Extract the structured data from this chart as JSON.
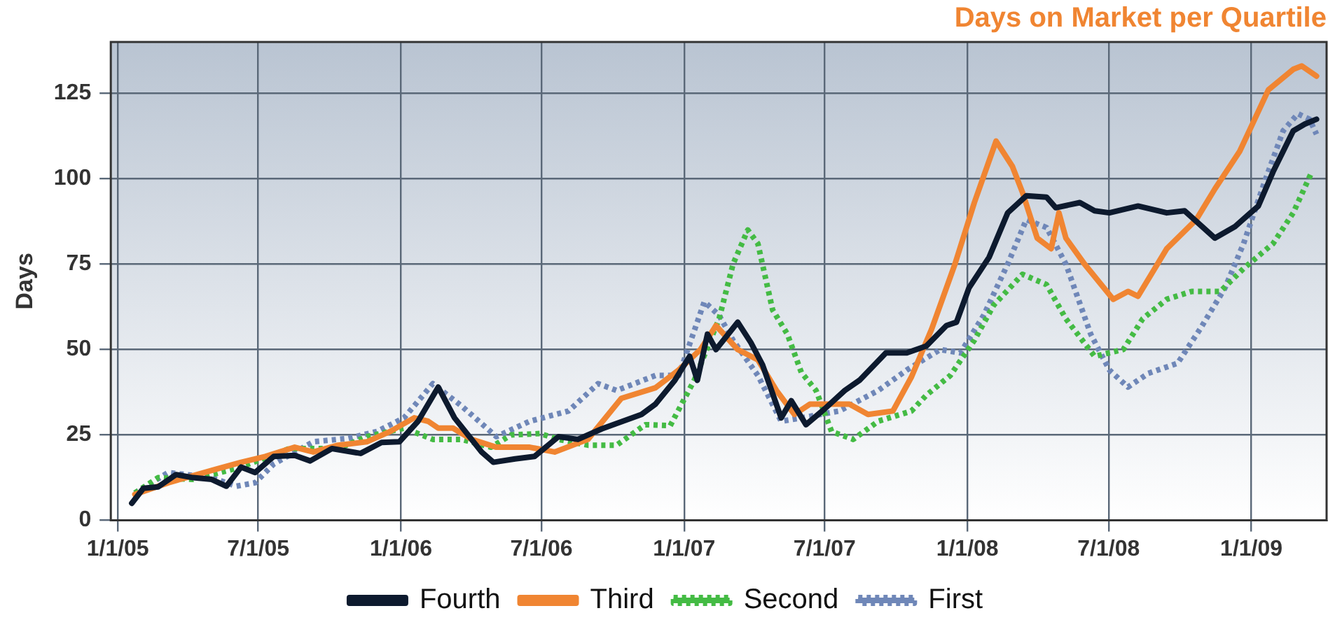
{
  "chart_data": {
    "type": "line",
    "title": "Days on Market per Quartile",
    "ylabel": "Days",
    "xlim": [
      "2004-12-23",
      "2009-04-08"
    ],
    "ylim": [
      0,
      140
    ],
    "xticks": [
      {
        "value": "2005-01-01",
        "label": "1/1/05"
      },
      {
        "value": "2005-07-01",
        "label": "7/1/05"
      },
      {
        "value": "2006-01-01",
        "label": "1/1/06"
      },
      {
        "value": "2006-07-01",
        "label": "7/1/06"
      },
      {
        "value": "2007-01-01",
        "label": "1/1/07"
      },
      {
        "value": "2007-07-01",
        "label": "7/1/07"
      },
      {
        "value": "2008-01-01",
        "label": "1/1/08"
      },
      {
        "value": "2008-07-01",
        "label": "7/1/08"
      },
      {
        "value": "2009-01-01",
        "label": "1/1/09"
      }
    ],
    "yticks": [
      0,
      25,
      50,
      75,
      100,
      125
    ],
    "grid": true,
    "legend": "bottom",
    "marker": "none",
    "series": [
      {
        "name": "Fourth",
        "color": "#0d1a2e",
        "line_style": "solid",
        "x": [
          "2005-01-19",
          "2005-02-03",
          "2005-02-22",
          "2005-03-17",
          "2005-04-08",
          "2005-05-02",
          "2005-05-21",
          "2005-06-09",
          "2005-06-27",
          "2005-07-21",
          "2005-08-17",
          "2005-09-06",
          "2005-10-04",
          "2005-11-10",
          "2005-12-07",
          "2005-12-30",
          "2006-01-23",
          "2006-02-18",
          "2006-03-11",
          "2006-04-15",
          "2006-04-30",
          "2006-05-28",
          "2006-06-22",
          "2006-07-23",
          "2006-08-17",
          "2006-09-17",
          "2006-11-07",
          "2006-11-25",
          "2006-12-20",
          "2007-01-08",
          "2007-01-18",
          "2007-01-31",
          "2007-02-11",
          "2007-03-11",
          "2007-03-28",
          "2007-04-12",
          "2007-05-06",
          "2007-05-19",
          "2007-06-07",
          "2007-07-01",
          "2007-07-27",
          "2007-08-15",
          "2007-09-18",
          "2007-10-15",
          "2007-11-09",
          "2007-12-05",
          "2007-12-18",
          "2008-01-03",
          "2008-01-29",
          "2008-02-22",
          "2008-03-17",
          "2008-04-12",
          "2008-04-24",
          "2008-05-25",
          "2008-06-13",
          "2008-07-02",
          "2008-08-08",
          "2008-09-14",
          "2008-10-07",
          "2008-11-15",
          "2008-12-11",
          "2009-01-10",
          "2009-01-29",
          "2009-02-24",
          "2009-03-11",
          "2009-03-26"
        ],
        "values": [
          5,
          9.4,
          9.8,
          13.4,
          12.5,
          12,
          10,
          15.6,
          14,
          18.7,
          19,
          17.4,
          21,
          19.6,
          22.8,
          23,
          29,
          39,
          30,
          20,
          17,
          18,
          18.7,
          24.5,
          23.7,
          26.8,
          31,
          34,
          41,
          48,
          41,
          54.5,
          50,
          58,
          52,
          45.5,
          30,
          35,
          28,
          32.6,
          38,
          41,
          49,
          49,
          51,
          57,
          58,
          68,
          77,
          90,
          95,
          94.6,
          91.5,
          93,
          90.6,
          90,
          92,
          90,
          90.6,
          82.6,
          86,
          92,
          102,
          114,
          116,
          117.4
        ]
      },
      {
        "name": "Third",
        "color": "#f08532",
        "line_style": "solid",
        "x": [
          "2005-01-23",
          "2005-03-07",
          "2005-05-08",
          "2005-06-09",
          "2005-07-10",
          "2005-08-17",
          "2005-09-10",
          "2005-10-12",
          "2005-11-18",
          "2005-12-18",
          "2006-01-18",
          "2006-02-05",
          "2006-02-18",
          "2006-03-09",
          "2006-04-02",
          "2006-05-04",
          "2006-06-16",
          "2006-07-18",
          "2006-08-30",
          "2006-10-12",
          "2006-11-25",
          "2006-12-25",
          "2007-01-22",
          "2007-02-11",
          "2007-03-11",
          "2007-04-06",
          "2007-04-30",
          "2007-05-23",
          "2007-06-12",
          "2007-08-02",
          "2007-08-26",
          "2007-09-27",
          "2007-10-21",
          "2007-11-16",
          "2007-12-16",
          "2008-01-10",
          "2008-02-07",
          "2008-02-28",
          "2008-03-12",
          "2008-03-31",
          "2008-04-18",
          "2008-04-28",
          "2008-05-07",
          "2008-05-31",
          "2008-07-07",
          "2008-07-26",
          "2008-08-08",
          "2008-09-14",
          "2008-10-22",
          "2008-11-15",
          "2008-12-17",
          "2009-01-23",
          "2009-02-24",
          "2009-03-07",
          "2009-03-26"
        ],
        "values": [
          7.6,
          11,
          15,
          17,
          18.7,
          21.4,
          20,
          22,
          23,
          26,
          30,
          29,
          27,
          27,
          23.7,
          21.4,
          21.4,
          20,
          23.7,
          35.7,
          38.8,
          44,
          50,
          57,
          50,
          47,
          38,
          31,
          34,
          34,
          31,
          32,
          42,
          56,
          75,
          93,
          111,
          103.6,
          96,
          82.6,
          79.5,
          90,
          82.6,
          75,
          64.7,
          67,
          65.6,
          79.5,
          88,
          97,
          108,
          126,
          132,
          133,
          130
        ]
      },
      {
        "name": "Second",
        "color": "#44bb44",
        "line_style": "dotted",
        "x": [
          "2005-01-23",
          "2005-02-22",
          "2005-04-08",
          "2005-06-09",
          "2005-08-10",
          "2005-10-12",
          "2005-11-18",
          "2006-01-05",
          "2006-02-11",
          "2006-03-20",
          "2006-04-27",
          "2006-05-23",
          "2006-06-29",
          "2006-07-23",
          "2006-08-30",
          "2006-10-06",
          "2006-11-12",
          "2006-12-14",
          "2007-01-14",
          "2007-02-15",
          "2007-03-05",
          "2007-03-24",
          "2007-04-06",
          "2007-04-25",
          "2007-05-14",
          "2007-06-01",
          "2007-06-20",
          "2007-07-10",
          "2007-08-07",
          "2007-09-08",
          "2007-10-21",
          "2007-11-09",
          "2007-12-10",
          "2008-01-10",
          "2008-02-04",
          "2008-03-12",
          "2008-04-12",
          "2008-05-07",
          "2008-06-13",
          "2008-07-20",
          "2008-08-14",
          "2008-09-14",
          "2008-10-16",
          "2008-11-22",
          "2008-12-22",
          "2009-01-29",
          "2009-02-24",
          "2009-03-20"
        ],
        "values": [
          8,
          12.5,
          12,
          15.6,
          21,
          21,
          24.5,
          27,
          23.7,
          23.7,
          21.4,
          25,
          25.4,
          23.7,
          22,
          22,
          28,
          27.7,
          41,
          59,
          75,
          85,
          81,
          61.6,
          54.5,
          43.3,
          38,
          26,
          23.7,
          29,
          32,
          36.6,
          42.4,
          52.7,
          63,
          72,
          69,
          59,
          48,
          50,
          59,
          64.7,
          67,
          67,
          73.7,
          81,
          90,
          102
        ]
      },
      {
        "name": "First",
        "color": "#6f87b8",
        "line_style": "dotted",
        "x": [
          "2005-01-23",
          "2005-03-07",
          "2005-05-02",
          "2005-06-03",
          "2005-06-27",
          "2005-07-21",
          "2005-09-10",
          "2005-10-25",
          "2005-12-01",
          "2006-01-05",
          "2006-02-11",
          "2006-03-20",
          "2006-05-04",
          "2006-06-16",
          "2006-08-05",
          "2006-09-12",
          "2006-10-06",
          "2006-11-25",
          "2006-12-25",
          "2007-01-27",
          "2007-02-15",
          "2007-03-05",
          "2007-04-06",
          "2007-05-06",
          "2007-06-01",
          "2007-07-20",
          "2007-09-08",
          "2007-10-15",
          "2007-11-27",
          "2007-12-23",
          "2008-01-22",
          "2008-02-22",
          "2008-03-17",
          "2008-04-12",
          "2008-05-07",
          "2008-06-08",
          "2008-07-02",
          "2008-07-26",
          "2008-08-21",
          "2008-09-28",
          "2008-10-27",
          "2008-11-28",
          "2008-12-22",
          "2009-01-18",
          "2009-02-11",
          "2009-03-02",
          "2009-03-17",
          "2009-03-26"
        ],
        "values": [
          8,
          14,
          12.5,
          10,
          11,
          16.5,
          23,
          24,
          26,
          30,
          40,
          33.5,
          24.5,
          29,
          32,
          40,
          38,
          42.4,
          42.4,
          64,
          60,
          52.7,
          42.4,
          29,
          30,
          32,
          38,
          44,
          50,
          49,
          60,
          75,
          88,
          85.7,
          75,
          54.5,
          44,
          39,
          43,
          46,
          56,
          68,
          81,
          99,
          114,
          119,
          117.4,
          113
        ]
      }
    ]
  }
}
